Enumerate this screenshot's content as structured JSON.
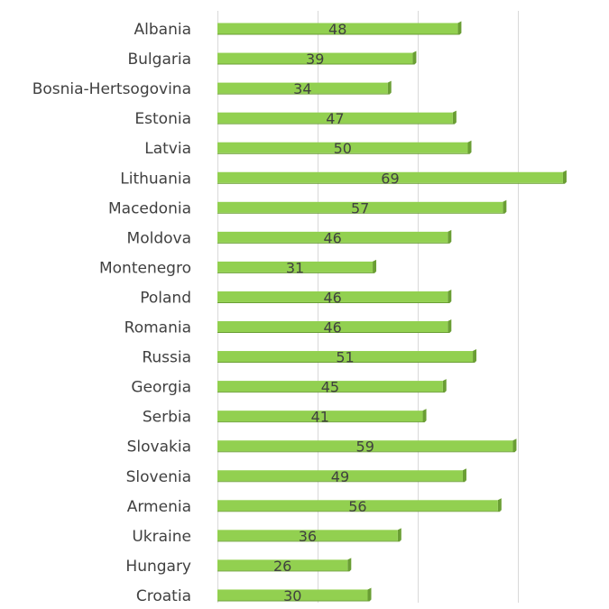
{
  "chart_data": {
    "type": "bar",
    "orientation": "horizontal",
    "title": "",
    "xlabel": "",
    "ylabel": "",
    "categories": [
      "Albania",
      "Bulgaria",
      "Bosnia-Hertsogovina",
      "Estonia",
      "Latvia",
      "Lithuania",
      "Macedonia",
      "Moldova",
      "Montenegro",
      "Poland",
      "Romania",
      "Russia",
      "Georgia",
      "Serbia",
      "Slovakia",
      "Slovenia",
      "Armenia",
      "Ukraine",
      "Hungary",
      "Croatia"
    ],
    "values": [
      48,
      39,
      34,
      47,
      50,
      69,
      57,
      46,
      31,
      46,
      46,
      51,
      45,
      41,
      59,
      49,
      56,
      36,
      26,
      30
    ],
    "xlim": [
      0,
      80
    ],
    "grid": true,
    "legend": "none",
    "data_labels": true,
    "bar_color": "#92d050",
    "bar_shade_color": "#6a9e34",
    "text_color": "#404040",
    "grid_color": "#d9d9d9"
  }
}
